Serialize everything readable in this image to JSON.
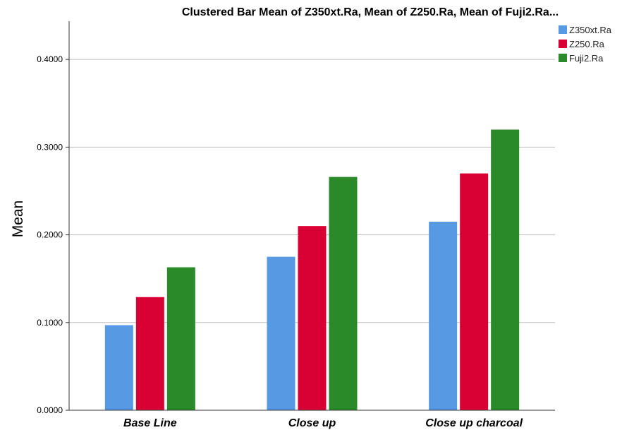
{
  "chart_data": {
    "type": "bar",
    "title": "Clustered Bar Mean of Z350xt.Ra, Mean of Z250.Ra, Mean of Fuji2.Ra...",
    "xlabel": "",
    "ylabel": "Mean",
    "categories": [
      "Base Line",
      "Close up",
      "Close up charcoal"
    ],
    "series": [
      {
        "name": "Z350xt.Ra",
        "color": "#5799e3",
        "values": [
          0.097,
          0.175,
          0.215
        ]
      },
      {
        "name": "Z250.Ra",
        "color": "#d90033",
        "values": [
          0.129,
          0.21,
          0.27
        ]
      },
      {
        "name": "Fuji2.Ra",
        "color": "#2a8a2a",
        "values": [
          0.163,
          0.266,
          0.32
        ]
      }
    ],
    "yticks": [
      "0.0000",
      "0.1000",
      "0.2000",
      "0.3000",
      "0.4000"
    ],
    "ytick_values": [
      0,
      0.1,
      0.2,
      0.3,
      0.4
    ],
    "ylim": [
      0,
      0.4436
    ],
    "grid": true,
    "legend_position": "top-right"
  }
}
